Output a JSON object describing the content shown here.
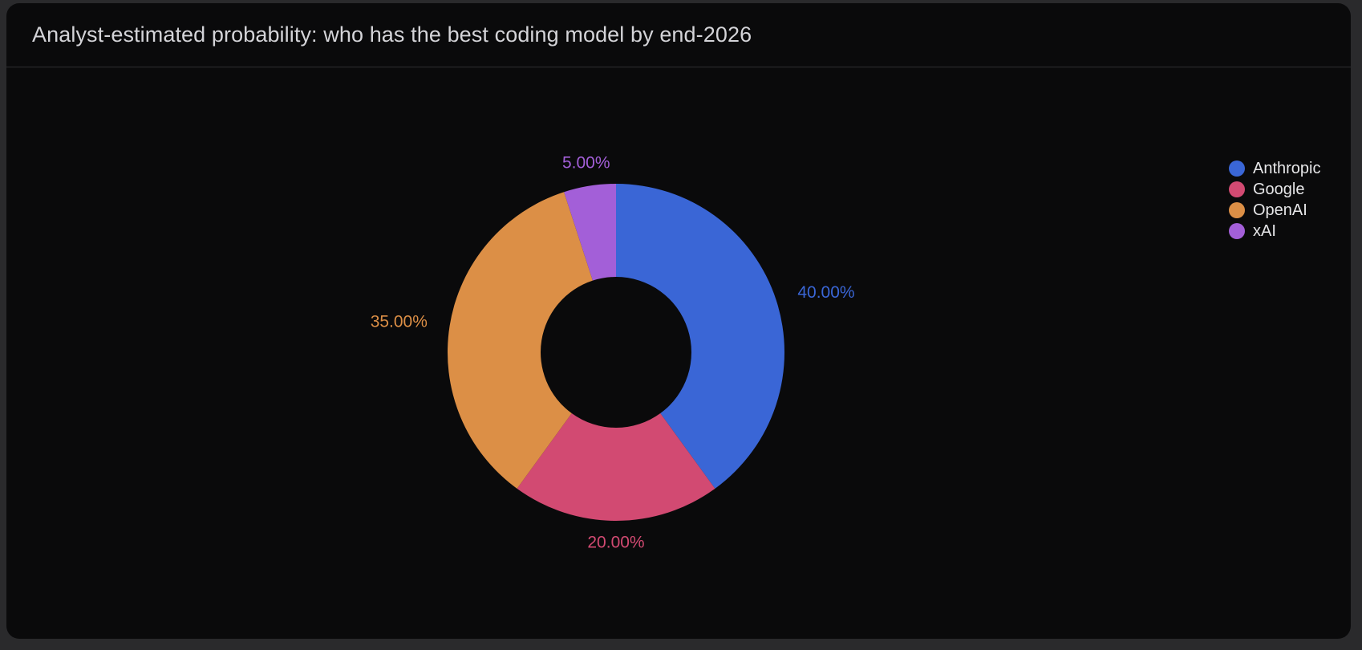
{
  "card": {
    "title": "Analyst-estimated probability: who has the best coding model by end-2026"
  },
  "chart_data": {
    "type": "pie",
    "variant": "donut",
    "title": "Analyst-estimated probability: who has the best coding model by end-2026",
    "legend_position": "top-right",
    "series": [
      {
        "name": "Anthropic",
        "value": 40,
        "label": "40.00%",
        "color": "#3a66d6"
      },
      {
        "name": "Google",
        "value": 20,
        "label": "20.00%",
        "color": "#d24a72"
      },
      {
        "name": "OpenAI",
        "value": 35,
        "label": "35.00%",
        "color": "#dc8f46"
      },
      {
        "name": "xAI",
        "value": 5,
        "label": "5.00%",
        "color": "#a35fd8"
      }
    ]
  }
}
